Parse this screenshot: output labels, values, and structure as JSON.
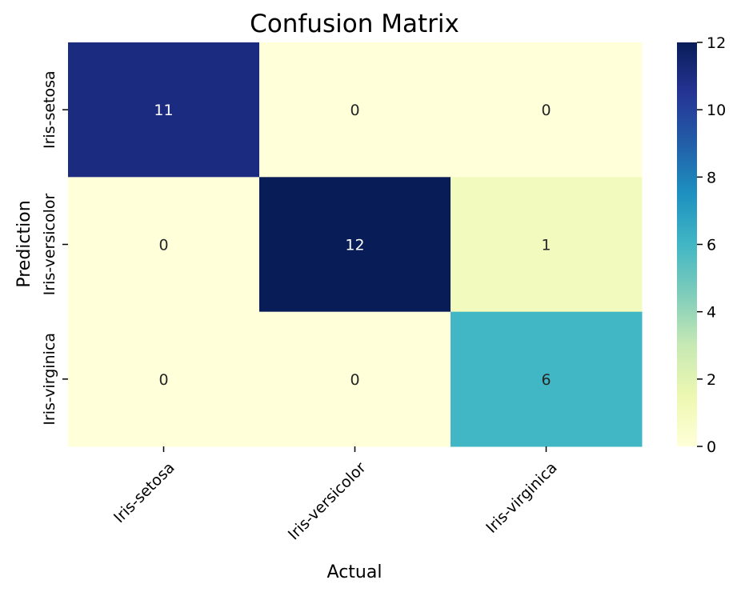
{
  "chart_data": {
    "type": "heatmap",
    "title": "Confusion Matrix",
    "xlabel": "Actual",
    "ylabel": "Prediction",
    "x_categories": [
      "Iris-setosa",
      "Iris-versicolor",
      "Iris-virginica"
    ],
    "y_categories": [
      "Iris-setosa",
      "Iris-versicolor",
      "Iris-virginica"
    ],
    "values": [
      [
        11,
        0,
        0
      ],
      [
        0,
        12,
        1
      ],
      [
        0,
        0,
        6
      ]
    ],
    "colorbar": {
      "range": [
        0,
        12
      ],
      "ticks": [
        "0",
        "2",
        "4",
        "6",
        "8",
        "10",
        "12"
      ],
      "colormap": "YlGnBu"
    },
    "grid": false
  }
}
